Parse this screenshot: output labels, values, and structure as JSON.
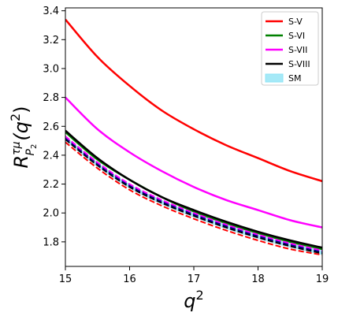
{
  "chart_data": {
    "type": "line",
    "title": "",
    "xlabel": "q",
    "xlabel_sup": "2",
    "ylabel": {
      "base": "R",
      "sup": "τμ",
      "sub": "P",
      "subsub": "2",
      "arg_open": "(q",
      "arg_sup": "2",
      "arg_close": ")"
    },
    "xlim": [
      15,
      19
    ],
    "ylim": [
      1.63,
      3.42
    ],
    "xticks": [
      15,
      16,
      17,
      18,
      19
    ],
    "xtick_labels": [
      "15",
      "16",
      "17",
      "18",
      "19"
    ],
    "yticks": [
      1.8,
      2.0,
      2.2,
      2.4,
      2.6,
      2.8,
      3.0,
      3.2,
      3.4
    ],
    "ytick_labels": [
      "1.8",
      "2.0",
      "2.2",
      "2.4",
      "2.6",
      "2.8",
      "3.0",
      "3.2",
      "3.4"
    ],
    "grid": false,
    "legend_position": "top-right",
    "x": [
      15,
      15.5,
      16,
      16.5,
      17,
      17.5,
      18,
      18.5,
      19
    ],
    "series": [
      {
        "name": "S-V",
        "color": "#ff0000",
        "style": "solid",
        "legend_kind": "line",
        "values": [
          3.34,
          3.08,
          2.88,
          2.71,
          2.58,
          2.47,
          2.38,
          2.29,
          2.22
        ]
      },
      {
        "name": "S-VI",
        "color": "#008000",
        "style": "solid",
        "legend_kind": "line",
        "values": [
          2.56,
          2.37,
          2.23,
          2.11,
          2.01,
          1.93,
          1.86,
          1.8,
          1.75
        ]
      },
      {
        "name": "S-VII",
        "color": "#ff00ff",
        "style": "solid",
        "legend_kind": "line",
        "values": [
          2.8,
          2.58,
          2.42,
          2.29,
          2.18,
          2.09,
          2.02,
          1.95,
          1.9
        ]
      },
      {
        "name": "S-VIII",
        "color": "#000000",
        "style": "solid",
        "legend_kind": "line",
        "values": [
          2.57,
          2.38,
          2.23,
          2.11,
          2.02,
          1.94,
          1.87,
          1.81,
          1.76
        ]
      },
      {
        "name": "SM",
        "color": "#8fe4f5",
        "style": "band",
        "legend_kind": "patch",
        "values_low": [
          2.5,
          2.32,
          2.17,
          2.06,
          1.97,
          1.89,
          1.82,
          1.76,
          1.71
        ],
        "values_high": [
          2.53,
          2.35,
          2.2,
          2.09,
          2.0,
          1.92,
          1.85,
          1.79,
          1.74
        ]
      },
      {
        "name": "",
        "color": "#ff0000",
        "style": "dashed",
        "legend_kind": "none",
        "values": [
          2.49,
          2.31,
          2.16,
          2.05,
          1.96,
          1.88,
          1.81,
          1.75,
          1.71
        ]
      },
      {
        "name": "",
        "color": "#000000",
        "style": "dashed",
        "legend_kind": "none",
        "values": [
          2.51,
          2.33,
          2.18,
          2.07,
          1.98,
          1.9,
          1.83,
          1.77,
          1.72
        ]
      },
      {
        "name": "",
        "color": "#00008b",
        "style": "dashed",
        "legend_kind": "none",
        "values": [
          2.52,
          2.34,
          2.19,
          2.08,
          1.99,
          1.91,
          1.84,
          1.78,
          1.73
        ]
      },
      {
        "name": "",
        "color": "#ff00ff",
        "style": "dashed",
        "legend_kind": "none",
        "values": [
          2.53,
          2.35,
          2.2,
          2.09,
          2.0,
          1.92,
          1.85,
          1.79,
          1.74
        ]
      }
    ]
  }
}
